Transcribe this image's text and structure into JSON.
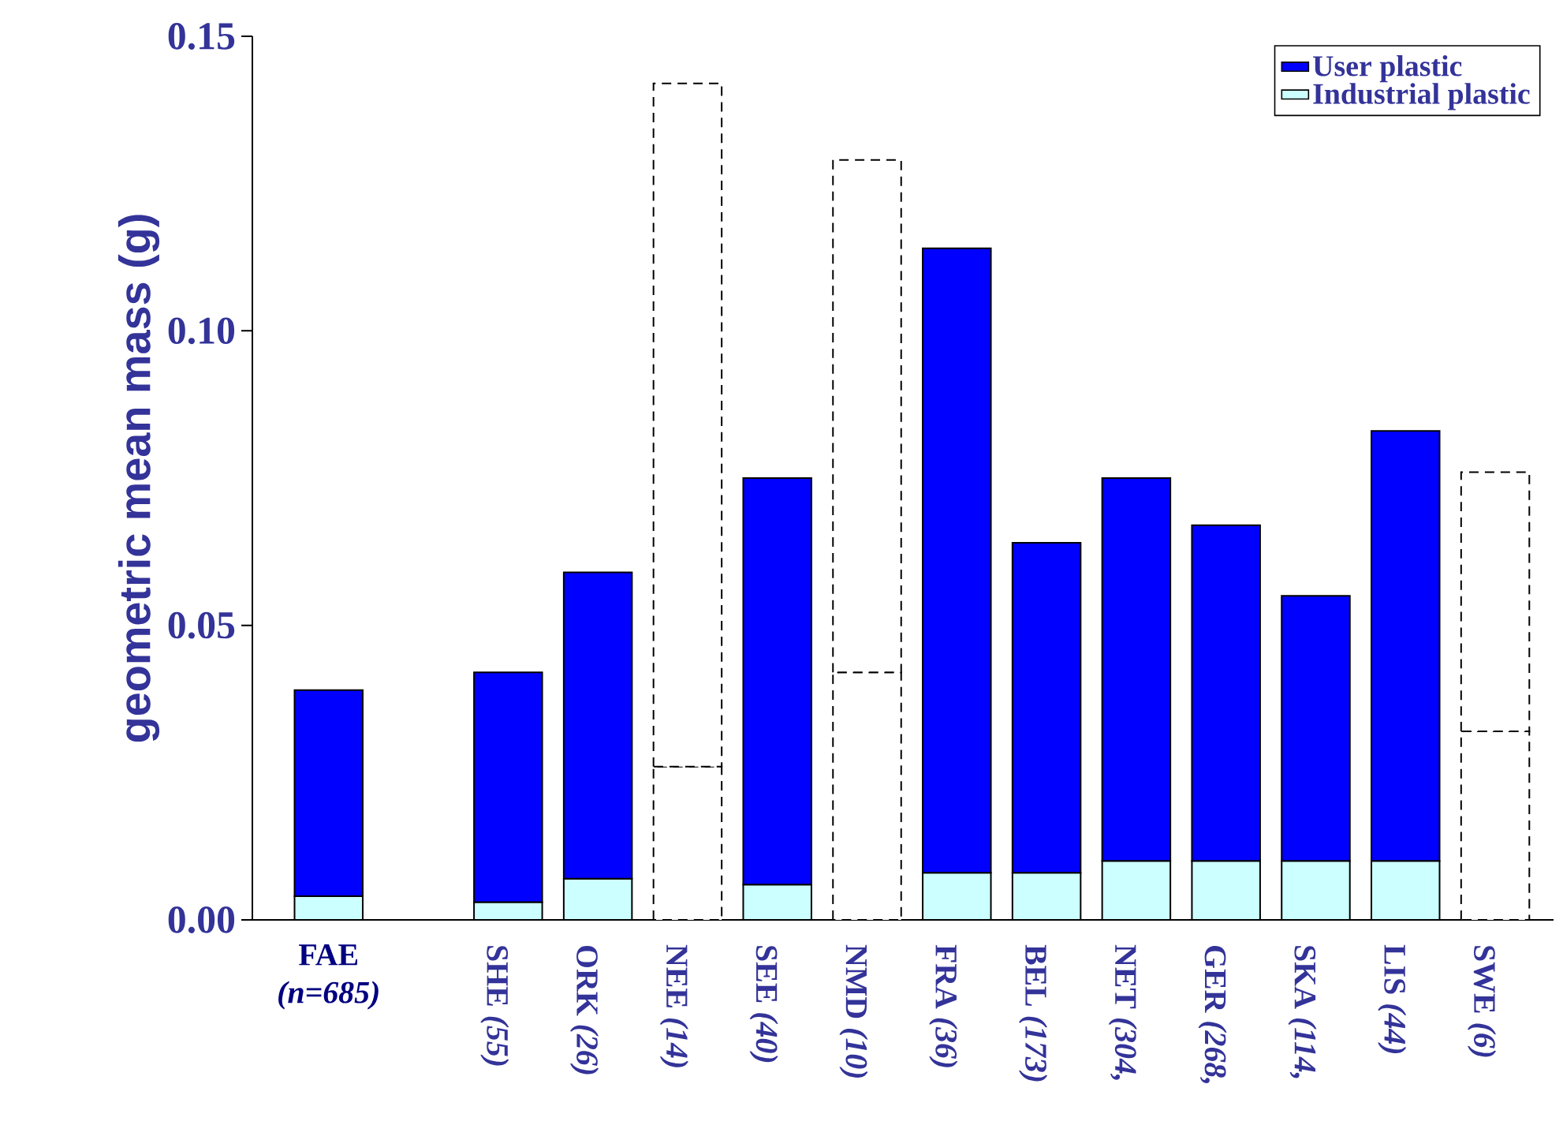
{
  "chart_data": {
    "type": "bar",
    "stacked": true,
    "ylabel": "geometric mean mass (g)",
    "categories": [
      "FAE *(n=685)*",
      null,
      "SHE *(55)*",
      "ORK *(26)*",
      "NEE *(14)*",
      "SEE *(40)*",
      "NMD *(10)*",
      "FRA *(36)*",
      "BEL *(173)*",
      "NET *(304,*",
      "GER *(268,*",
      "SKA *(114,*",
      "LIS *(44)*",
      "SWE *(6)*"
    ],
    "series": [
      {
        "name": "Industrial plastic",
        "color": "#ccffff",
        "values": [
          0.004,
          null,
          0.003,
          0.007,
          null,
          0.006,
          null,
          0.008,
          0.008,
          0.01,
          0.01,
          0.01,
          0.01,
          null
        ]
      },
      {
        "name": "User plastic",
        "color": "#0000ff",
        "values": [
          0.035,
          null,
          0.039,
          0.052,
          null,
          0.069,
          null,
          0.106,
          0.056,
          0.065,
          0.057,
          0.045,
          0.073,
          null
        ]
      },
      {
        "color": "#ffffff",
        "line_style": "dashed",
        "values": [
          null,
          null,
          null,
          null,
          0.026,
          null,
          0.042,
          null,
          null,
          null,
          null,
          null,
          null,
          0.032
        ]
      },
      {
        "color": "#ffffff",
        "line_style": "dashed",
        "values": [
          null,
          null,
          null,
          null,
          0.116,
          null,
          0.087,
          null,
          null,
          null,
          null,
          null,
          null,
          0.044
        ]
      }
    ],
    "ylim": [
      0,
      0.15
    ],
    "yticks": [
      {
        "value": 0,
        "label": "0.00"
      },
      {
        "value": 0.05,
        "label": "0.05"
      },
      {
        "value": 0.1,
        "label": "0.10"
      },
      {
        "value": 0.15,
        "label": "0.15"
      }
    ],
    "grid": false,
    "legend": "top right"
  }
}
